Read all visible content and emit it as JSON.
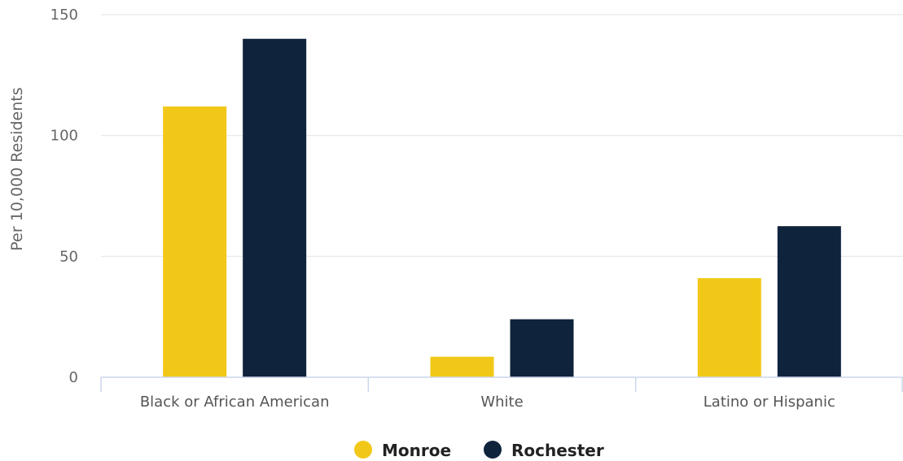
{
  "chart_data": {
    "type": "bar",
    "title": "",
    "xlabel": "",
    "ylabel": "Per 10,000 Residents",
    "ylim": [
      0,
      150
    ],
    "yticks": [
      0,
      50,
      100,
      150
    ],
    "categories": [
      "Black or African American",
      "White",
      "Latino or Hispanic"
    ],
    "series": [
      {
        "name": "Monroe",
        "color": "#F2C818",
        "values": [
          112,
          8.5,
          41
        ]
      },
      {
        "name": "Rochester",
        "color": "#0F233C",
        "values": [
          140,
          24,
          62.5
        ]
      }
    ],
    "grid": true,
    "legend": "bottom-center"
  }
}
